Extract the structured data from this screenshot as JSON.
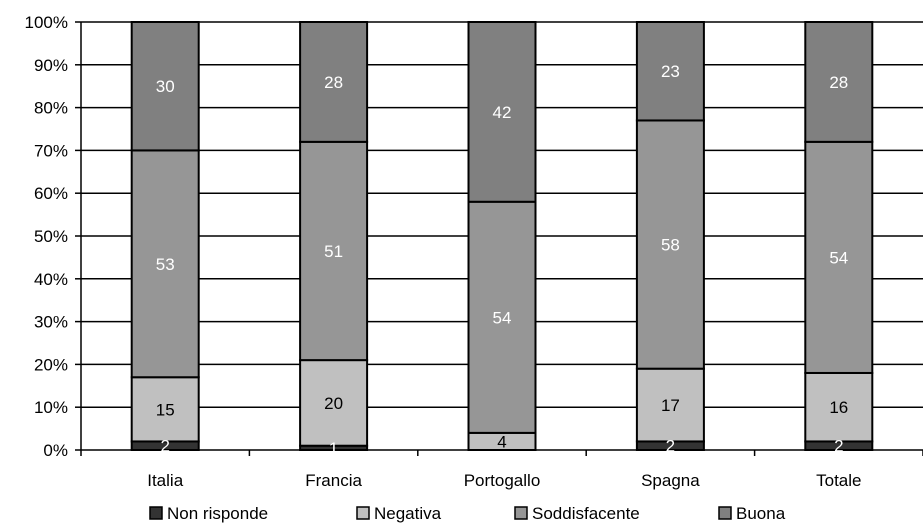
{
  "chart_data": {
    "type": "bar",
    "stacked": true,
    "percent_stacked": true,
    "title": "",
    "xlabel": "",
    "ylabel": "",
    "ylim": [
      0,
      100
    ],
    "y_ticks": [
      "0%",
      "10%",
      "20%",
      "30%",
      "40%",
      "50%",
      "60%",
      "70%",
      "80%",
      "90%",
      "100%"
    ],
    "grid": true,
    "legend_position": "bottom",
    "categories": [
      "Italia",
      "Francia",
      "Portogallo",
      "Spagna",
      "Totale"
    ],
    "series": [
      {
        "name": "Non risponde",
        "values": [
          2,
          1,
          0,
          2,
          2
        ],
        "labels": [
          "2",
          "1",
          "",
          "2",
          "2"
        ],
        "color": "#333333",
        "label_color": "#ffffff"
      },
      {
        "name": "Negativa",
        "values": [
          15,
          20,
          4,
          17,
          16
        ],
        "labels": [
          "15",
          "20",
          "4",
          "17",
          "16"
        ],
        "color": "#c0c0c0",
        "label_color": "#000000"
      },
      {
        "name": "Soddisfacente",
        "values": [
          53,
          51,
          54,
          58,
          54
        ],
        "labels": [
          "53",
          "51",
          "54",
          "58",
          "54"
        ],
        "color": "#969696",
        "label_color": "#ffffff"
      },
      {
        "name": "Buona",
        "values": [
          30,
          28,
          42,
          23,
          28
        ],
        "labels": [
          "30",
          "28",
          "42",
          "23",
          "28"
        ],
        "color": "#808080",
        "label_color": "#ffffff"
      }
    ]
  }
}
